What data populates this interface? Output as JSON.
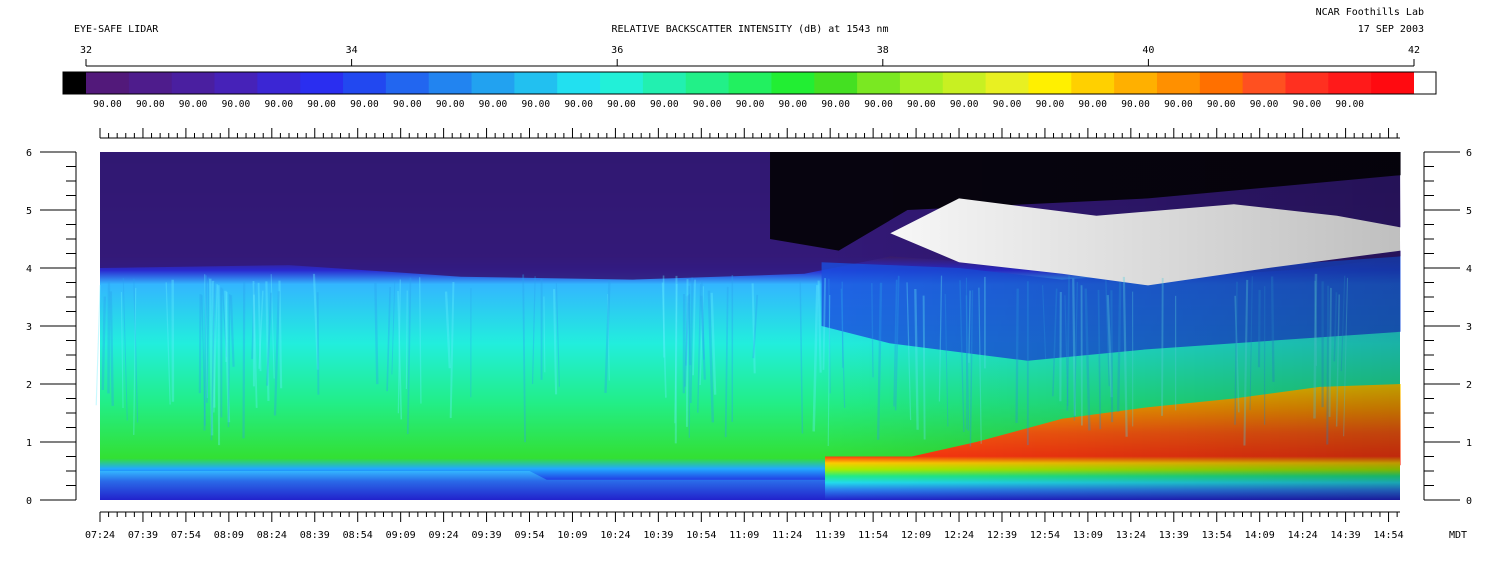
{
  "header": {
    "left_title": "EYE-SAFE LIDAR",
    "center_title": "RELATIVE BACKSCATTER INTENSITY (dB) at 1543 nm",
    "org": "NCAR Foothills Lab",
    "date": "17 SEP 2003"
  },
  "colorbar": {
    "scale_ticks": [
      "32",
      "34",
      "36",
      "38",
      "40",
      "42"
    ],
    "scale_range": [
      32,
      42
    ],
    "bin_label": "90.00",
    "bin_count": 31
  },
  "chart_data": {
    "type": "heatmap",
    "title": "RELATIVE BACKSCATTER INTENSITY (dB) at 1543 nm",
    "xlabel": "",
    "ylabel": "",
    "x_unit_label": "MDT",
    "x_ticks": [
      "07:24",
      "07:39",
      "07:54",
      "08:09",
      "08:24",
      "08:39",
      "08:54",
      "09:09",
      "09:24",
      "09:39",
      "09:54",
      "10:09",
      "10:24",
      "10:39",
      "10:54",
      "11:09",
      "11:24",
      "11:39",
      "11:54",
      "12:09",
      "12:24",
      "12:39",
      "12:54",
      "13:09",
      "13:24",
      "13:39",
      "13:54",
      "14:09",
      "14:24",
      "14:39",
      "14:54"
    ],
    "x_range": [
      "07:24",
      "14:58"
    ],
    "y_ticks": [
      0,
      1,
      2,
      3,
      4,
      5,
      6
    ],
    "ylim": [
      0,
      6
    ],
    "value_range_db": [
      32,
      42
    ],
    "approx_features": {
      "boundary_layer_top_height": [
        [
          7.4,
          4.0
        ],
        [
          8.5,
          4.05
        ],
        [
          9.5,
          3.85
        ],
        [
          10.5,
          3.8
        ],
        [
          11.5,
          3.9
        ],
        [
          12.0,
          4.2
        ],
        [
          12.5,
          4.1
        ],
        [
          13.5,
          3.8
        ],
        [
          14.5,
          4.0
        ],
        [
          14.97,
          4.2
        ]
      ],
      "near_surface_layer_height": [
        [
          7.4,
          0.5
        ],
        [
          9.9,
          0.5
        ],
        [
          10.0,
          0.35
        ],
        [
          11.6,
          0.35
        ],
        [
          11.65,
          0.6
        ],
        [
          14.97,
          0.6
        ]
      ],
      "high_backscatter_layer_top": [
        [
          11.9,
          0.6
        ],
        [
          12.5,
          1.0
        ],
        [
          13.0,
          1.4
        ],
        [
          13.5,
          1.6
        ],
        [
          14.0,
          1.75
        ],
        [
          14.5,
          1.95
        ],
        [
          14.97,
          2.0
        ]
      ],
      "saturated_cloud_region_height": [
        4.1,
        5.2
      ],
      "saturated_cloud_region_time": [
        12.0,
        14.97
      ]
    }
  }
}
